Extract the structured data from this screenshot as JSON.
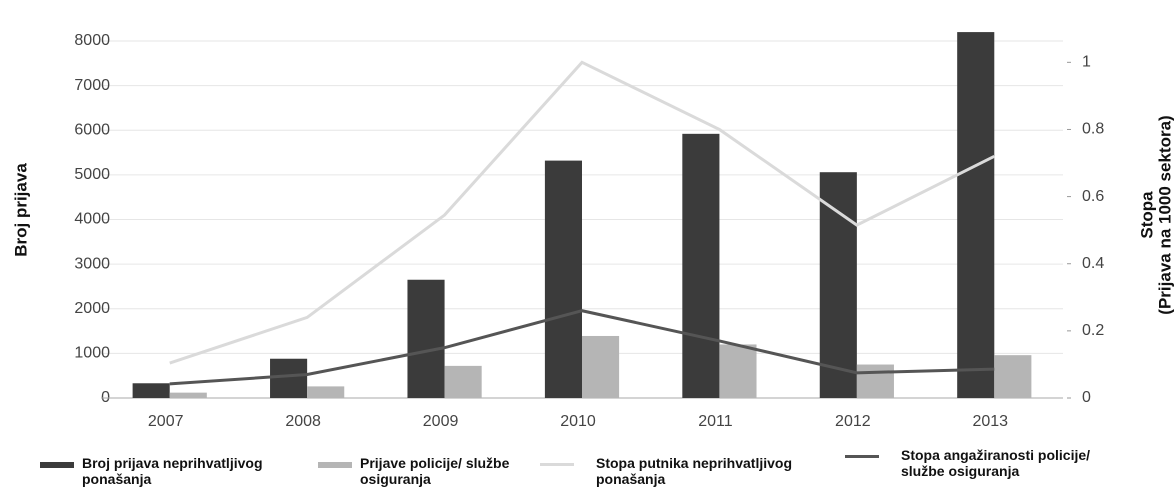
{
  "chart_data": {
    "type": "bar_line",
    "ylabel": "Broj prijava",
    "y2label": [
      "Stopa",
      "(Prijava na 1000 sektora)"
    ],
    "categories": [
      "2007",
      "2008",
      "2009",
      "2010",
      "2011",
      "2012",
      "2013"
    ],
    "ylim": [
      0,
      8500
    ],
    "yticks": [
      0,
      1000,
      2000,
      3000,
      4000,
      5000,
      6000,
      7000,
      8000
    ],
    "y2lim": [
      0,
      1.13
    ],
    "y2ticks": [
      0,
      0.2,
      0.4,
      0.6,
      0.8,
      1
    ],
    "grid": true,
    "legend": "bottom",
    "series": [
      {
        "name": "Broj prijava neprihvatljivog ponašanja",
        "type": "bar",
        "color": "#3b3b3b",
        "values": [
          330,
          880,
          2650,
          5320,
          5920,
          5060,
          8200
        ]
      },
      {
        "name": "Prijave policije/ službe osiguranja",
        "type": "bar",
        "color": "#b5b5b5",
        "values": [
          120,
          260,
          720,
          1390,
          1200,
          750,
          960
        ]
      },
      {
        "name": "Stopa putnika neprihvatljivog ponašanja",
        "type": "line",
        "axis": "y2",
        "color": "#dadada",
        "values": [
          0.104,
          0.24,
          0.545,
          1.0,
          0.8,
          0.515,
          0.72
        ]
      },
      {
        "name": "Stopa angažiranosti policije/ službe osiguranja",
        "type": "line",
        "axis": "y2",
        "color": "#555555",
        "values": [
          0.042,
          0.07,
          0.15,
          0.26,
          0.17,
          0.075,
          0.086
        ]
      }
    ]
  }
}
